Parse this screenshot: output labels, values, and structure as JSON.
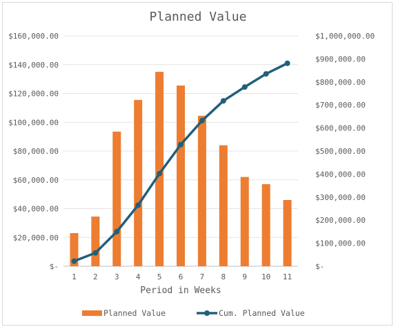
{
  "chart_data": {
    "type": "bar",
    "title": "Planned Value",
    "xlabel": "Period in Weeks",
    "ylabel": "",
    "y2label": "",
    "categories": [
      "1",
      "2",
      "3",
      "4",
      "5",
      "6",
      "7",
      "8",
      "9",
      "10",
      "11"
    ],
    "series": [
      {
        "name": "Planned  Value",
        "type": "bar",
        "axis": "left",
        "color": "#ed7d31",
        "values": [
          23000,
          34500,
          93500,
          115500,
          135000,
          125500,
          104500,
          84000,
          62000,
          57000,
          46000
        ]
      },
      {
        "name": "Cum. Planned  Value",
        "type": "line",
        "axis": "right",
        "color": "#215f7a",
        "marker": "circle",
        "values": [
          22000,
          58000,
          150000,
          265000,
          402000,
          528000,
          632000,
          718000,
          778000,
          835000,
          881000
        ]
      }
    ],
    "ylim": [
      0,
      160000
    ],
    "y2lim": [
      0,
      1000000
    ],
    "yticks": [
      "$-",
      "$20,000.00",
      "$40,000.00",
      "$60,000.00",
      "$80,000.00",
      "$100,000.00",
      "$120,000.00",
      "$140,000.00",
      "$160,000.00"
    ],
    "y2ticks": [
      "$-",
      "$100,000.00",
      "$200,000.00",
      "$300,000.00",
      "$400,000.00",
      "$500,000.00",
      "$600,000.00",
      "$700,000.00",
      "$800,000.00",
      "$900,000.00",
      "$1,000,000.00"
    ],
    "grid": true,
    "legend_position": "bottom"
  }
}
